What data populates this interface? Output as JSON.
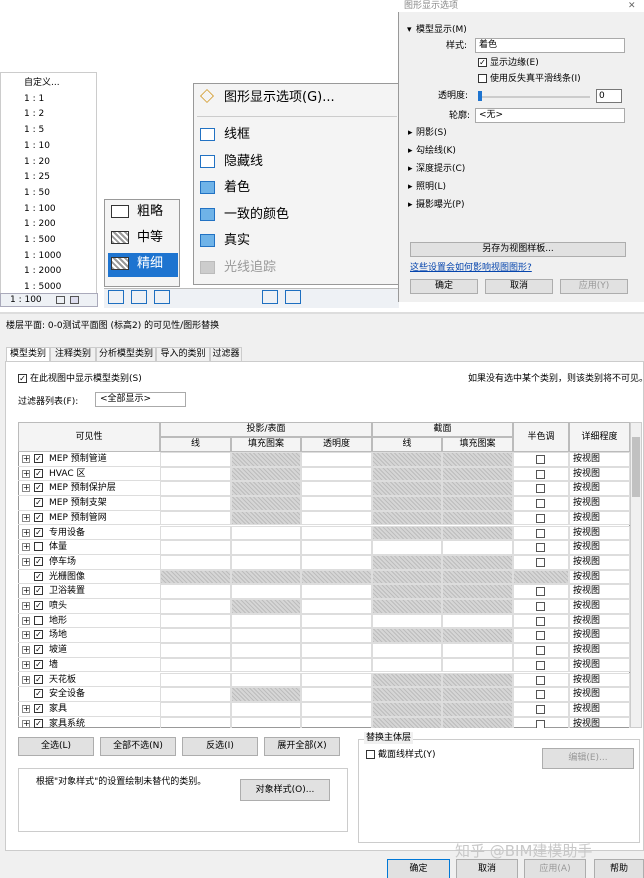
{
  "scale_list": {
    "items": [
      "自定义...",
      "1 : 1",
      "1 : 2",
      "1 : 5",
      "1 : 10",
      "1 : 20",
      "1 : 25",
      "1 : 50",
      "1 : 100",
      "1 : 200",
      "1 : 500",
      "1 : 1000",
      "1 : 2000",
      "1 : 5000"
    ],
    "status_scale": "1 : 100"
  },
  "detail_menu": {
    "items": [
      "粗略",
      "中等",
      "精细"
    ],
    "selected": 2
  },
  "style_menu": {
    "options": "图形显示选项(G)...",
    "items": [
      "线框",
      "隐藏线",
      "着色",
      "一致的颜色",
      "真实",
      "光线追踪"
    ],
    "disabled": [
      5
    ]
  },
  "graphics_dialog": {
    "title": "图形显示选项",
    "model_display": "模型显示(M)",
    "style_label": "样式:",
    "style_value": "着色",
    "show_edges": "显示边缘(E)",
    "antialias": "使用反失真平滑线条(I)",
    "transparency_label": "透明度:",
    "transparency": 0,
    "silhouette_label": "轮廓:",
    "silhouette_value": "<无>",
    "sections": [
      "阴影(S)",
      "勾绘线(K)",
      "深度提示(C)",
      "照明(L)",
      "摄影曝光(P)"
    ],
    "save_template": "另存为视图样板...",
    "link": "这些设置会如何影响视图图形?",
    "buttons": [
      "确定",
      "取消",
      "应用(Y)"
    ]
  },
  "vg_dialog": {
    "title": "楼层平面: 0-0测试平面图 (标高2) 的可见性/图形替换",
    "tabs": [
      "模型类别",
      "注释类别",
      "分析模型类别",
      "导入的类别",
      "过滤器"
    ],
    "show_categories": "在此视图中显示模型类别(S)",
    "note": "如果没有选中某个类别，则该类别将不可见。",
    "filter_label": "过滤器列表(F):",
    "filter_value": "<全部显示>",
    "table": {
      "headers": {
        "visibility": "可见性",
        "projection": "投影/表面",
        "section": "截面",
        "halftone": "半色调",
        "detail": "详细程度",
        "proj_cols": [
          "线",
          "填充图案",
          "透明度"
        ],
        "sec_cols": [
          "线",
          "填充图案"
        ]
      },
      "rows": [
        {
          "name": "MEP 预制管道",
          "visible": true,
          "expand": true,
          "detail": "按视图",
          "grayed": [
            1,
            3,
            4
          ]
        },
        {
          "name": "HVAC 区",
          "visible": true,
          "expand": true,
          "detail": "按视图",
          "grayed": [
            1,
            3,
            4
          ]
        },
        {
          "name": "MEP 预制保护层",
          "visible": true,
          "expand": true,
          "detail": "按视图",
          "grayed": [
            1,
            3,
            4
          ]
        },
        {
          "name": "MEP 预制支架",
          "visible": true,
          "expand": false,
          "detail": "按视图",
          "grayed": [
            1,
            3,
            4
          ]
        },
        {
          "name": "MEP 预制管网",
          "visible": true,
          "expand": true,
          "detail": "按视图",
          "grayed": [
            1,
            3,
            4
          ]
        },
        {
          "name": "专用设备",
          "visible": true,
          "expand": true,
          "detail": "按视图",
          "grayed": [
            3,
            4
          ]
        },
        {
          "name": "体量",
          "visible": false,
          "expand": true,
          "detail": "按视图",
          "grayed": []
        },
        {
          "name": "停车场",
          "visible": true,
          "expand": true,
          "detail": "按视图",
          "grayed": [
            3,
            4
          ]
        },
        {
          "name": "光栅图像",
          "visible": true,
          "expand": false,
          "detail": "按视图",
          "grayed": [
            0,
            1,
            2,
            3,
            4,
            5
          ]
        },
        {
          "name": "卫浴装置",
          "visible": true,
          "expand": true,
          "detail": "按视图",
          "grayed": [
            3,
            4
          ]
        },
        {
          "name": "喷头",
          "visible": true,
          "expand": true,
          "detail": "按视图",
          "grayed": [
            1,
            3,
            4
          ]
        },
        {
          "name": "地形",
          "visible": false,
          "expand": true,
          "detail": "按视图",
          "grayed": []
        },
        {
          "name": "场地",
          "visible": true,
          "expand": true,
          "detail": "按视图",
          "grayed": [
            3,
            4
          ]
        },
        {
          "name": "坡道",
          "visible": true,
          "expand": true,
          "detail": "按视图",
          "grayed": []
        },
        {
          "name": "墙",
          "visible": true,
          "expand": true,
          "detail": "按视图",
          "grayed": []
        },
        {
          "name": "天花板",
          "visible": true,
          "expand": true,
          "detail": "按视图",
          "grayed": [
            3,
            4
          ]
        },
        {
          "name": "安全设备",
          "visible": true,
          "expand": false,
          "detail": "按视图",
          "grayed": [
            1,
            3,
            4
          ]
        },
        {
          "name": "家具",
          "visible": true,
          "expand": true,
          "detail": "按视图",
          "grayed": [
            3,
            4
          ]
        },
        {
          "name": "家具系统",
          "visible": true,
          "expand": true,
          "detail": "按视图",
          "grayed": [
            3,
            4
          ]
        }
      ]
    },
    "row_buttons": [
      "全选(L)",
      "全部不选(N)",
      "反选(I)",
      "展开全部(X)"
    ],
    "host_group": "替换主体层",
    "host_checkbox": "截面线样式(Y)",
    "host_edit": "编辑(E)...",
    "object_note": "根据\"对象样式\"的设置绘制未替代的类别。",
    "object_button": "对象样式(O)...",
    "footer_buttons": [
      "确定",
      "取消",
      "应用(A)",
      "帮助"
    ]
  },
  "watermark": "知乎 @BIM建模助手"
}
